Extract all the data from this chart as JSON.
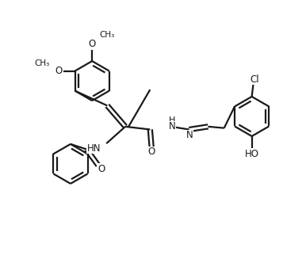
{
  "bg_color": "#ffffff",
  "line_color": "#1a1a1a",
  "bond_lw": 1.6,
  "figsize": [
    3.86,
    3.27
  ],
  "dpi": 100,
  "xlim": [
    0,
    10.5
  ],
  "ylim": [
    0,
    8.8
  ]
}
